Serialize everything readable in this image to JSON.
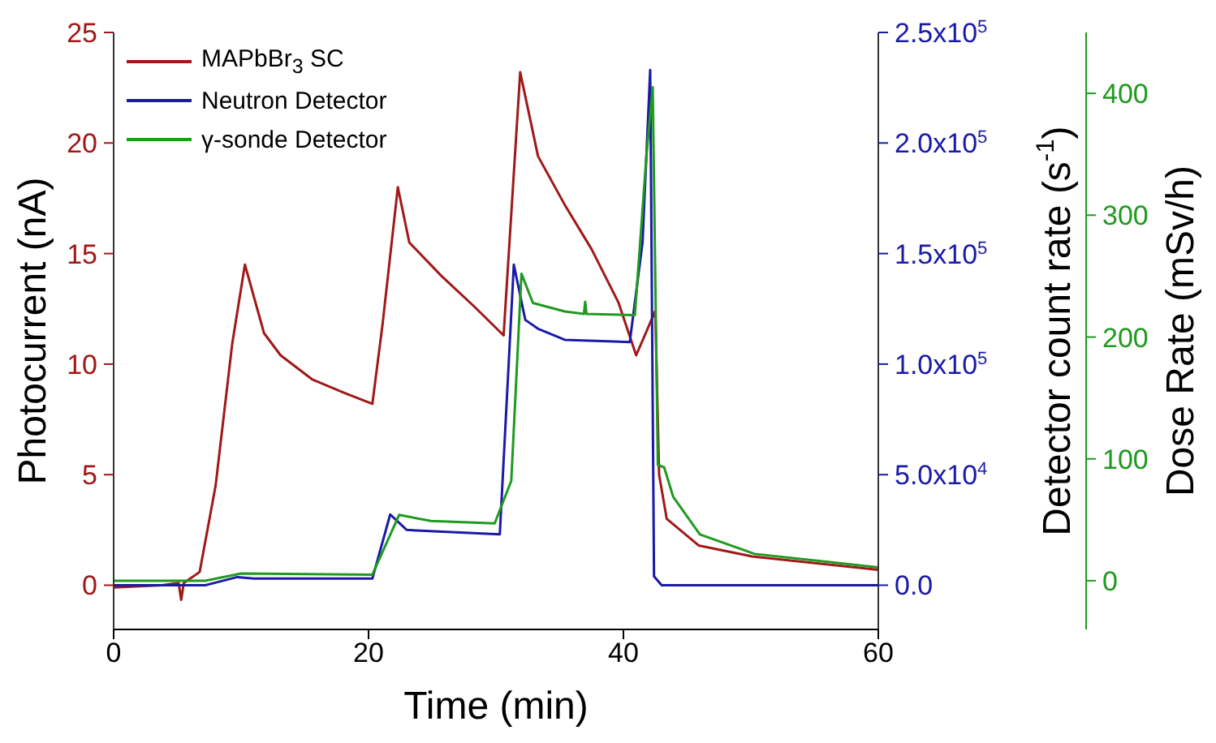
{
  "chart_data": {
    "type": "line",
    "xlabel": "Time (min)",
    "ylabel": "Photocurrent (nA)",
    "y2label": "Detector count rate (s$^{-1}$)",
    "y3label": "Dose Rate (mSv/h)",
    "xlim": [
      0,
      60
    ],
    "xticks": [
      0,
      20,
      40,
      60
    ],
    "ylim": [
      -2,
      25
    ],
    "yticks": [
      0,
      5,
      10,
      15,
      20,
      25
    ],
    "y2lim": [
      -20000,
      250000
    ],
    "y2ticks": [
      {
        "value": 0,
        "label": "0.0"
      },
      {
        "value": 50000,
        "label": "5.0x10$^{4}$"
      },
      {
        "value": 100000,
        "label": "1.0x10$^{5}$"
      },
      {
        "value": 150000,
        "label": "1.5x10$^{5}$"
      },
      {
        "value": 200000,
        "label": "2.0x10$^{5}$"
      },
      {
        "value": 250000,
        "label": "2.5x10$^{5}$"
      }
    ],
    "y3lim": [
      -40,
      450
    ],
    "y3ticks": [
      0,
      100,
      200,
      300,
      400
    ],
    "grid": false,
    "legend": "top left",
    "series": [
      {
        "name": "MAPbBr$_{3}$ SC",
        "color": "#a01818",
        "x": [
          0,
          3.8,
          5.1,
          5.3,
          5.5,
          6.75,
          8.0,
          9.3,
          10.3,
          11.8,
          13.1,
          15.6,
          18.1,
          20.3,
          21.1,
          22.3,
          23.2,
          25.7,
          28.3,
          30.6,
          31.9,
          33.3,
          35.4,
          37.5,
          39.6,
          41.0,
          42.5,
          42.8,
          43.4,
          45.9,
          50.1,
          60
        ],
        "values": [
          -0.1,
          0,
          0.1,
          -0.66,
          0.1,
          0.6,
          4.5,
          10.9,
          14.5,
          11.4,
          10.4,
          9.3,
          8.7,
          8.2,
          11.8,
          18.0,
          15.5,
          14.0,
          12.6,
          11.3,
          23.2,
          19.4,
          17.2,
          15.2,
          12.8,
          10.4,
          12.4,
          5.0,
          3.0,
          1.8,
          1.3,
          0.7
        ]
      },
      {
        "name": "Neutron Detector",
        "color": "#1a1aa8",
        "axis": "y2",
        "x": [
          0,
          7.2,
          9.7,
          11,
          20.3,
          21.7,
          23,
          30.3,
          31.4,
          32.3,
          33.3,
          35.4,
          40.5,
          41.5,
          42.1,
          42.4,
          43.0,
          60
        ],
        "values": [
          0,
          0,
          3700,
          3000,
          3000,
          32000,
          25000,
          23000,
          145000,
          120000,
          116000,
          111000,
          110000,
          155000,
          233000,
          4000,
          0,
          0
        ]
      },
      {
        "name": "γ-sonde Detector",
        "color": "#1f9a1f",
        "axis": "y3",
        "x": [
          0,
          7.2,
          10,
          20.3,
          22.4,
          24.9,
          29.9,
          31.2,
          32.0,
          32.9,
          35.4,
          36.9,
          37.0,
          37.1,
          40.9,
          41.8,
          42.3,
          42.7,
          43.2,
          43.9,
          46.0,
          50.3,
          60
        ],
        "values": [
          0,
          0,
          6,
          5,
          54,
          49,
          47,
          82,
          252,
          228,
          221,
          219,
          229,
          219,
          218,
          348,
          405,
          95,
          93,
          69,
          38,
          22,
          11
        ]
      }
    ]
  }
}
